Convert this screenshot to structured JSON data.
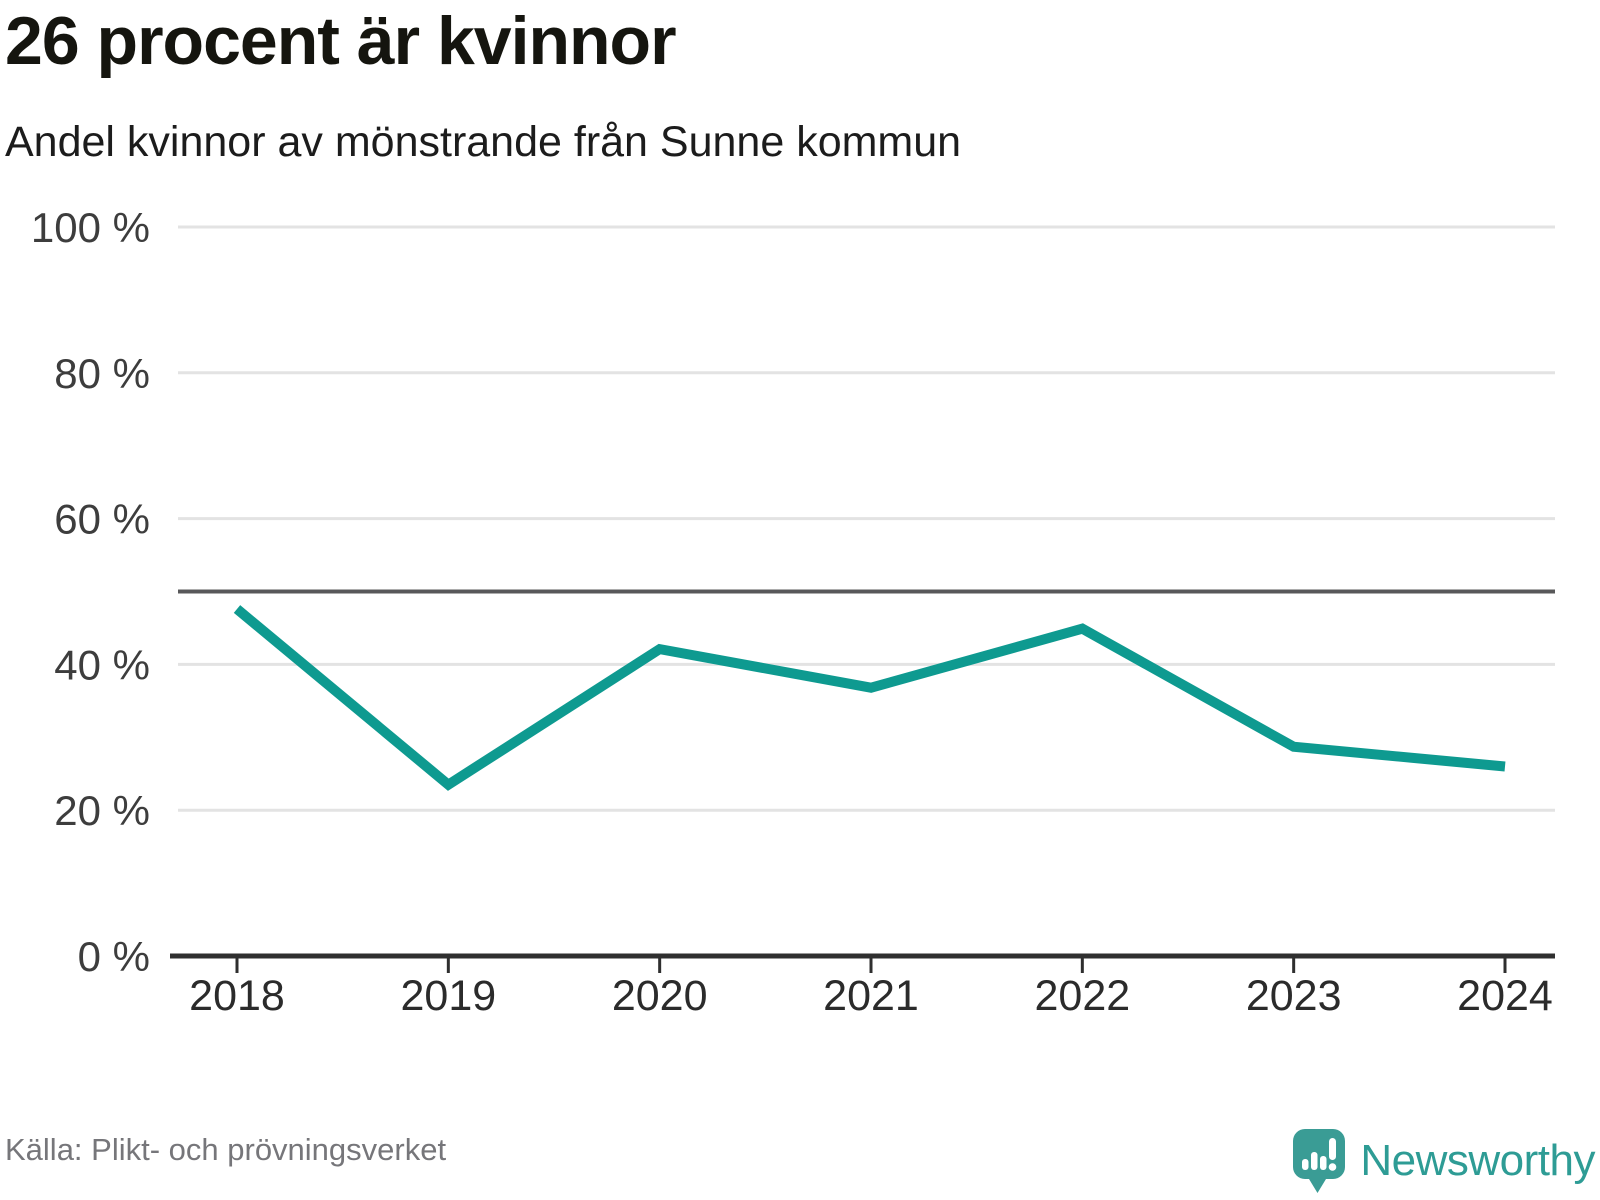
{
  "header": {
    "title": "26 procent är kvinnor",
    "subtitle": "Andel kvinnor av mönstrande från Sunne kommun"
  },
  "chart_data": {
    "type": "line",
    "title": "26 procent är kvinnor",
    "subtitle": "Andel kvinnor av mönstrande från Sunne kommun",
    "x": [
      2018,
      2019,
      2020,
      2021,
      2022,
      2023,
      2024
    ],
    "x_tick_labels": [
      "2018",
      "2019",
      "2020",
      "2021",
      "2022",
      "2023",
      "2024"
    ],
    "series": [
      {
        "name": "Andel kvinnor av mönstrande",
        "values": [
          47.6,
          23.5,
          42.1,
          36.8,
          44.9,
          28.7,
          26.0
        ]
      }
    ],
    "xlabel": "",
    "ylabel": "",
    "ylim": [
      0,
      100
    ],
    "yticks": [
      0,
      20,
      40,
      60,
      80,
      100
    ],
    "y_tick_labels": [
      "0 %",
      "20 %",
      "40 %",
      "60 %",
      "80 %",
      "100 %"
    ],
    "reference_line": {
      "value": 50
    },
    "grid": "horizontal",
    "legend": "none"
  },
  "footer": {
    "source": "Källa: Plikt- och prövningsverket",
    "brand": "Newsworthy"
  },
  "colors": {
    "line": "#0e9a90",
    "gridline": "#e3e3e3",
    "reference_line": "#58585a",
    "axis": "#2f2f2f",
    "y_label": "#3d3d3d",
    "x_label": "#2b2b2b",
    "title": "#15150f",
    "source_text": "#76767a",
    "brand_teal": "#3a9c95"
  }
}
